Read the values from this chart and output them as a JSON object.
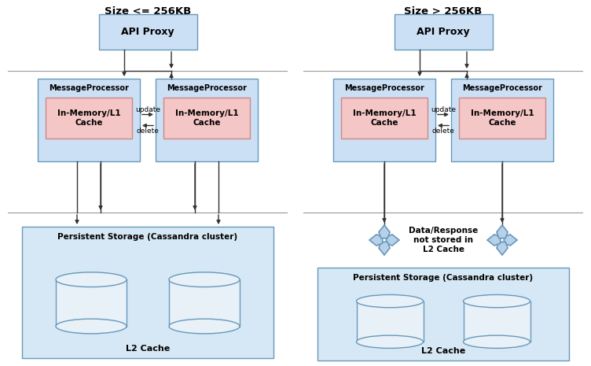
{
  "fig_width": 7.52,
  "fig_height": 4.65,
  "dpi": 100,
  "bg_color": "#ffffff",
  "box_blue_face": "#cce0f5",
  "box_blue_edge": "#6699bb",
  "box_pink_face": "#f5c6c6",
  "box_pink_edge": "#cc8888",
  "box_storage_face": "#d6e8f5",
  "box_storage_edge": "#6699bb",
  "cyl_face": "#e8f0f8",
  "cyl_edge": "#6699bb",
  "x_face": "#b8d0e8",
  "x_edge": "#6699bb",
  "arrow_color": "#333333",
  "line_color": "#999999",
  "title_left": "Size <= 256KB",
  "title_right": "Size > 256KB",
  "label_api": "API Proxy",
  "label_mp": "MessageProcessor",
  "label_cache": "In-Memory/L1\nCache",
  "label_storage": "Persistent Storage (Cassandra cluster)",
  "label_l2": "L2 Cache",
  "label_update": "update",
  "label_delete": "delete",
  "label_no_cache": "Data/Response\nnot stored in\nL2 Cache"
}
